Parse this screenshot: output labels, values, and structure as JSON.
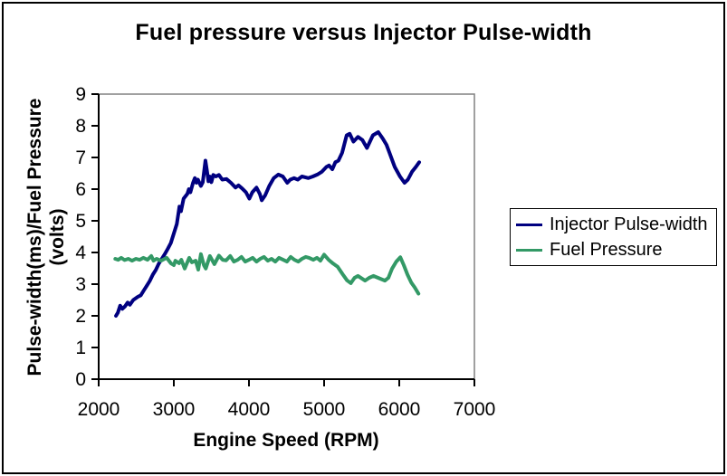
{
  "chart_data": {
    "type": "line",
    "title": "Fuel pressure versus Injector Pulse-width",
    "xlabel": "Engine Speed (RPM)",
    "ylabel": "Pulse-width(ms)/Fuel Pressure\n(volts)",
    "xlim": [
      2000,
      7000
    ],
    "ylim": [
      0,
      9
    ],
    "x_ticks": [
      2000,
      3000,
      4000,
      5000,
      6000,
      7000
    ],
    "y_ticks": [
      0,
      1,
      2,
      3,
      4,
      5,
      6,
      7,
      8,
      9
    ],
    "grid": false,
    "legend_position": "right",
    "background_color": "#ffffff",
    "axis_color": "#000000",
    "plot_border_color": "#808080",
    "series": [
      {
        "name": "Injector Pulse-width",
        "color": "#000080",
        "points": [
          [
            2230,
            2.0
          ],
          [
            2255,
            2.1
          ],
          [
            2285,
            2.32
          ],
          [
            2315,
            2.22
          ],
          [
            2350,
            2.3
          ],
          [
            2385,
            2.42
          ],
          [
            2415,
            2.35
          ],
          [
            2460,
            2.5
          ],
          [
            2520,
            2.6
          ],
          [
            2560,
            2.65
          ],
          [
            2600,
            2.8
          ],
          [
            2640,
            2.95
          ],
          [
            2680,
            3.1
          ],
          [
            2720,
            3.3
          ],
          [
            2760,
            3.45
          ],
          [
            2800,
            3.65
          ],
          [
            2840,
            3.8
          ],
          [
            2880,
            3.95
          ],
          [
            2920,
            4.12
          ],
          [
            2960,
            4.3
          ],
          [
            3000,
            4.6
          ],
          [
            3040,
            4.9
          ],
          [
            3075,
            5.45
          ],
          [
            3095,
            5.3
          ],
          [
            3130,
            5.7
          ],
          [
            3180,
            5.85
          ],
          [
            3200,
            6.0
          ],
          [
            3220,
            5.9
          ],
          [
            3255,
            6.2
          ],
          [
            3280,
            6.35
          ],
          [
            3300,
            6.2
          ],
          [
            3320,
            6.3
          ],
          [
            3360,
            6.1
          ],
          [
            3385,
            6.22
          ],
          [
            3420,
            6.9
          ],
          [
            3440,
            6.6
          ],
          [
            3460,
            6.25
          ],
          [
            3480,
            6.4
          ],
          [
            3500,
            6.22
          ],
          [
            3525,
            6.45
          ],
          [
            3560,
            6.4
          ],
          [
            3600,
            6.45
          ],
          [
            3645,
            6.3
          ],
          [
            3700,
            6.32
          ],
          [
            3760,
            6.2
          ],
          [
            3820,
            6.05
          ],
          [
            3860,
            6.12
          ],
          [
            3910,
            6.02
          ],
          [
            3960,
            5.9
          ],
          [
            4005,
            5.7
          ],
          [
            4045,
            5.9
          ],
          [
            4100,
            6.05
          ],
          [
            4145,
            5.85
          ],
          [
            4170,
            5.65
          ],
          [
            4215,
            5.8
          ],
          [
            4270,
            6.1
          ],
          [
            4330,
            6.35
          ],
          [
            4390,
            6.46
          ],
          [
            4450,
            6.4
          ],
          [
            4510,
            6.2
          ],
          [
            4550,
            6.3
          ],
          [
            4600,
            6.35
          ],
          [
            4650,
            6.3
          ],
          [
            4705,
            6.4
          ],
          [
            4790,
            6.35
          ],
          [
            4850,
            6.4
          ],
          [
            4910,
            6.46
          ],
          [
            4970,
            6.55
          ],
          [
            5030,
            6.7
          ],
          [
            5065,
            6.75
          ],
          [
            5110,
            6.63
          ],
          [
            5150,
            6.85
          ],
          [
            5190,
            6.9
          ],
          [
            5240,
            7.15
          ],
          [
            5300,
            7.7
          ],
          [
            5340,
            7.75
          ],
          [
            5390,
            7.5
          ],
          [
            5450,
            7.65
          ],
          [
            5510,
            7.55
          ],
          [
            5570,
            7.3
          ],
          [
            5650,
            7.7
          ],
          [
            5720,
            7.8
          ],
          [
            5780,
            7.6
          ],
          [
            5830,
            7.4
          ],
          [
            5870,
            7.15
          ],
          [
            5940,
            6.7
          ],
          [
            6010,
            6.4
          ],
          [
            6070,
            6.2
          ],
          [
            6115,
            6.3
          ],
          [
            6170,
            6.55
          ],
          [
            6220,
            6.7
          ],
          [
            6265,
            6.85
          ]
        ]
      },
      {
        "name": "Fuel Pressure",
        "color": "#339966",
        "points": [
          [
            2220,
            3.8
          ],
          [
            2260,
            3.77
          ],
          [
            2300,
            3.83
          ],
          [
            2345,
            3.76
          ],
          [
            2395,
            3.8
          ],
          [
            2445,
            3.74
          ],
          [
            2495,
            3.8
          ],
          [
            2545,
            3.77
          ],
          [
            2595,
            3.83
          ],
          [
            2650,
            3.77
          ],
          [
            2700,
            3.89
          ],
          [
            2730,
            3.74
          ],
          [
            2770,
            3.8
          ],
          [
            2830,
            3.74
          ],
          [
            2905,
            3.83
          ],
          [
            2960,
            3.66
          ],
          [
            3000,
            3.6
          ],
          [
            3020,
            3.74
          ],
          [
            3070,
            3.66
          ],
          [
            3100,
            3.77
          ],
          [
            3145,
            3.49
          ],
          [
            3205,
            3.83
          ],
          [
            3240,
            3.69
          ],
          [
            3290,
            3.74
          ],
          [
            3325,
            3.46
          ],
          [
            3360,
            3.95
          ],
          [
            3400,
            3.6
          ],
          [
            3425,
            3.49
          ],
          [
            3480,
            3.89
          ],
          [
            3540,
            3.63
          ],
          [
            3600,
            3.9
          ],
          [
            3650,
            3.77
          ],
          [
            3695,
            3.75
          ],
          [
            3750,
            3.89
          ],
          [
            3800,
            3.71
          ],
          [
            3850,
            3.77
          ],
          [
            3900,
            3.86
          ],
          [
            3950,
            3.71
          ],
          [
            4000,
            3.77
          ],
          [
            4050,
            3.83
          ],
          [
            4100,
            3.71
          ],
          [
            4150,
            3.8
          ],
          [
            4200,
            3.86
          ],
          [
            4250,
            3.74
          ],
          [
            4300,
            3.8
          ],
          [
            4350,
            3.71
          ],
          [
            4400,
            3.83
          ],
          [
            4455,
            3.77
          ],
          [
            4505,
            3.71
          ],
          [
            4555,
            3.86
          ],
          [
            4605,
            3.77
          ],
          [
            4655,
            3.71
          ],
          [
            4705,
            3.8
          ],
          [
            4755,
            3.86
          ],
          [
            4800,
            3.83
          ],
          [
            4855,
            3.77
          ],
          [
            4905,
            3.83
          ],
          [
            4950,
            3.74
          ],
          [
            5000,
            3.93
          ],
          [
            5060,
            3.77
          ],
          [
            5120,
            3.65
          ],
          [
            5180,
            3.55
          ],
          [
            5250,
            3.3
          ],
          [
            5305,
            3.12
          ],
          [
            5355,
            3.03
          ],
          [
            5405,
            3.2
          ],
          [
            5450,
            3.26
          ],
          [
            5545,
            3.11
          ],
          [
            5600,
            3.2
          ],
          [
            5655,
            3.26
          ],
          [
            5750,
            3.17
          ],
          [
            5810,
            3.11
          ],
          [
            5855,
            3.2
          ],
          [
            5905,
            3.49
          ],
          [
            5960,
            3.71
          ],
          [
            6015,
            3.85
          ],
          [
            6060,
            3.6
          ],
          [
            6110,
            3.3
          ],
          [
            6160,
            3.05
          ],
          [
            6205,
            2.9
          ],
          [
            6255,
            2.7
          ]
        ]
      }
    ]
  }
}
